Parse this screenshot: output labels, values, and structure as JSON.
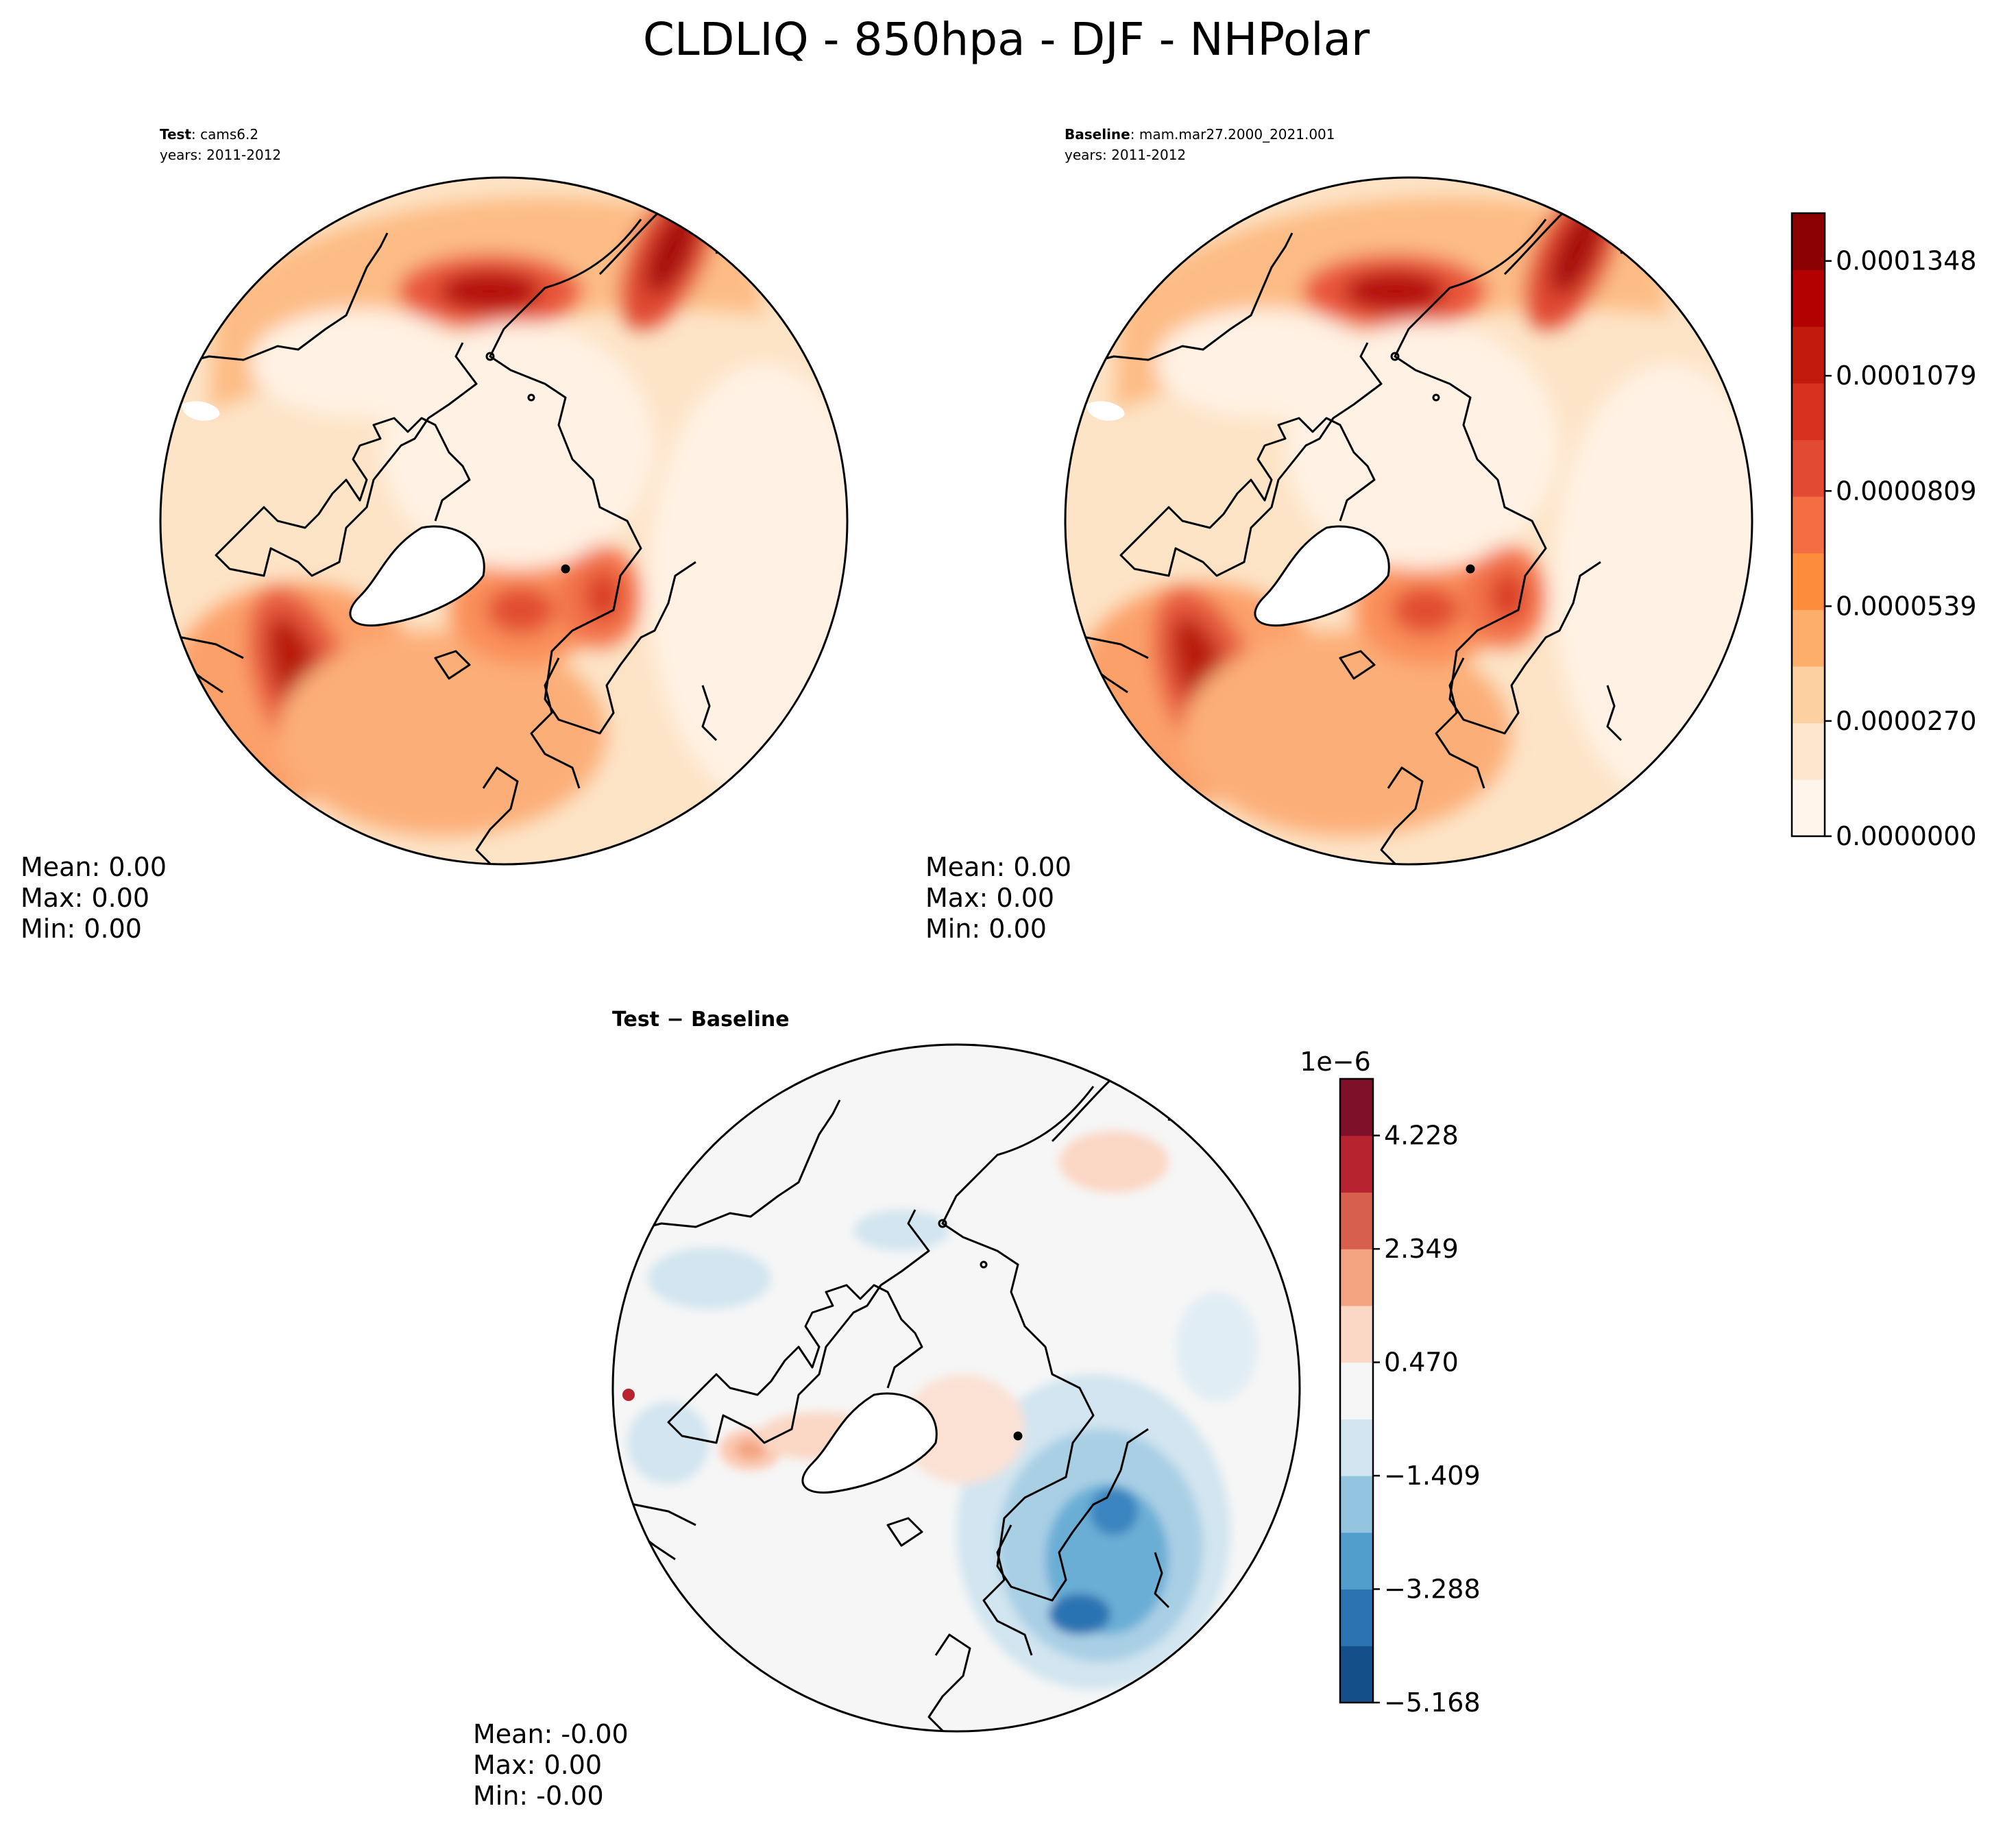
{
  "title": "CLDLIQ - 850hpa - DJF - NHPolar",
  "panels": {
    "test": {
      "label_bold": "Test",
      "label_rest": ": cams6.2",
      "years": "years: 2011-2012",
      "stats": {
        "mean": "Mean:  0.00",
        "max": "Max:  0.00",
        "min": "Min:  0.00"
      }
    },
    "baseline": {
      "label_bold": "Baseline",
      "label_rest": ": mam.mar27.2000_2021.001",
      "years": "years: 2011-2012",
      "stats": {
        "mean": "Mean:  0.00",
        "max": "Max:  0.00",
        "min": "Min:  0.00"
      }
    },
    "diff": {
      "label": "Test − Baseline",
      "stats": {
        "mean": "Mean: -0.00",
        "max": "Max:  0.00",
        "min": "Min: -0.00"
      }
    }
  },
  "colorbar_main": {
    "tick_labels": [
      "0.0000000",
      "0.0000270",
      "0.0000539",
      "0.0000809",
      "0.0001079",
      "0.0001348"
    ],
    "colors": [
      "#fff5eb",
      "#fee6ce",
      "#fdd0a2",
      "#fdae6b",
      "#fd8d3c",
      "#f46d43",
      "#e34a33",
      "#d7301f",
      "#c21a0d",
      "#b30000",
      "#8b0000"
    ]
  },
  "colorbar_diff": {
    "offset": "1e−6",
    "tick_labels": [
      "−5.168",
      "−3.288",
      "−1.409",
      "0.470",
      "2.349",
      "4.228"
    ],
    "colors": [
      "#154f8a",
      "#2c73b2",
      "#519ecd",
      "#93c4e0",
      "#d2e5f0",
      "#f6f6f6",
      "#fbd7c5",
      "#f3a581",
      "#d6604d",
      "#b7242f",
      "#7f1029"
    ]
  },
  "chart_data": [
    {
      "type": "heatmap",
      "title": "Test: cams6.2 (years: 2011-2012)",
      "projection": "North polar stereographic",
      "variable": "CLDLIQ",
      "level": "850hpa",
      "season": "DJF",
      "colorbar_range": [
        0.0,
        0.000146
      ],
      "colorbar_ticks": [
        0.0,
        2.7e-05,
        5.39e-05,
        8.09e-05,
        0.0001079,
        0.0001348
      ],
      "mean": 0.0,
      "max": 0.0,
      "min": 0.0
    },
    {
      "type": "heatmap",
      "title": "Baseline: mam.mar27.2000_2021.001 (years: 2011-2012)",
      "projection": "North polar stereographic",
      "colorbar_range": [
        0.0,
        0.000146
      ],
      "colorbar_ticks": [
        0.0,
        2.7e-05,
        5.39e-05,
        8.09e-05,
        0.0001079,
        0.0001348
      ],
      "mean": 0.0,
      "max": 0.0,
      "min": 0.0
    },
    {
      "type": "heatmap",
      "title": "Test − Baseline",
      "projection": "North polar stereographic",
      "colorbar_multiplier": "1e-6",
      "colorbar_range": [
        -5.168,
        5.167
      ],
      "colorbar_ticks": [
        -5.168,
        -3.288,
        -1.409,
        0.47,
        2.349,
        4.228
      ],
      "mean": -0.0,
      "max": 0.0,
      "min": -0.0
    }
  ]
}
